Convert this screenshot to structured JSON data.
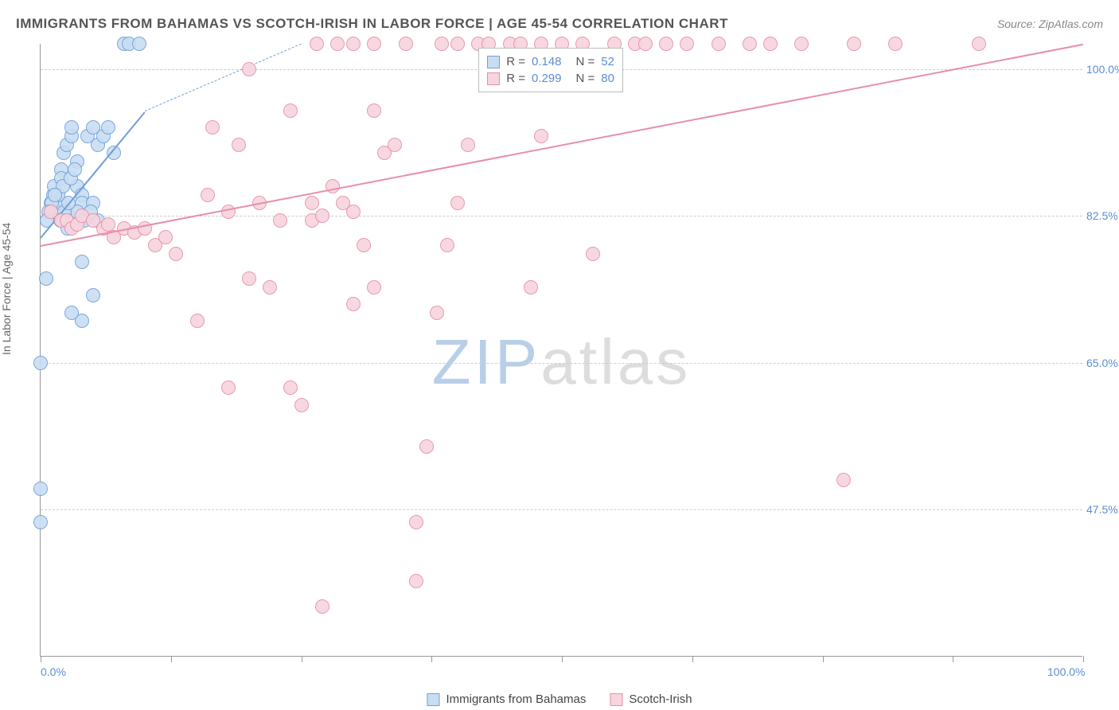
{
  "title": "IMMIGRANTS FROM BAHAMAS VS SCOTCH-IRISH IN LABOR FORCE | AGE 45-54 CORRELATION CHART",
  "source_label": "Source: ZipAtlas.com",
  "y_axis_title": "In Labor Force | Age 45-54",
  "watermark": {
    "pre": "ZIP",
    "post": "atlas",
    "pre_color": "#b9cfe8",
    "post_color": "#dddddd"
  },
  "chart": {
    "type": "scatter",
    "xlim": [
      0,
      100
    ],
    "ylim": [
      30,
      103
    ],
    "y_ticks": [
      {
        "v": 47.5,
        "label": "47.5%"
      },
      {
        "v": 65.0,
        "label": "65.0%"
      },
      {
        "v": 82.5,
        "label": "82.5%"
      },
      {
        "v": 100.0,
        "label": "100.0%"
      }
    ],
    "x_ticks_major": [
      0,
      12.5,
      25,
      37.5,
      50,
      62.5,
      75,
      87.5,
      100
    ],
    "x_tick_labels": [
      {
        "v": 0,
        "label": "0.0%"
      },
      {
        "v": 100,
        "label": "100.0%"
      }
    ],
    "background_color": "#ffffff",
    "grid_color": "#cccccc",
    "marker_radius": 9,
    "marker_fill_opacity": 0.25,
    "series": [
      {
        "name": "Immigrants from Bahamas",
        "color": "#6f9fd8",
        "fill": "#c9ddf2",
        "R": 0.148,
        "N": 52,
        "trend": {
          "x1": 0,
          "y1": 80,
          "x2": 10,
          "y2": 95,
          "solid_until_x": 10,
          "dash_to_x": 25,
          "dash_to_y": 103
        },
        "points": [
          [
            0,
            50
          ],
          [
            0,
            46
          ],
          [
            0,
            65
          ],
          [
            0.5,
            75
          ],
          [
            1,
            84
          ],
          [
            1,
            83
          ],
          [
            1.2,
            85
          ],
          [
            1.3,
            86
          ],
          [
            1.5,
            82.5
          ],
          [
            1.5,
            83
          ],
          [
            1.8,
            84
          ],
          [
            2,
            88
          ],
          [
            2,
            87
          ],
          [
            2.2,
            90
          ],
          [
            2.5,
            91
          ],
          [
            2.5,
            83
          ],
          [
            3,
            92
          ],
          [
            3,
            93
          ],
          [
            3.5,
            89
          ],
          [
            3.5,
            86
          ],
          [
            4,
            85
          ],
          [
            4,
            84
          ],
          [
            4.5,
            92
          ],
          [
            5,
            93
          ],
          [
            5,
            84
          ],
          [
            5.5,
            82
          ],
          [
            5,
            73
          ],
          [
            4,
            70
          ],
          [
            3,
            71
          ],
          [
            4,
            77
          ],
          [
            5.5,
            91
          ],
          [
            6,
            92
          ],
          [
            6.5,
            93
          ],
          [
            7,
            90
          ],
          [
            8,
            103
          ],
          [
            8.5,
            103
          ],
          [
            9.5,
            103
          ],
          [
            3.5,
            83
          ],
          [
            2.3,
            83
          ],
          [
            2.7,
            84
          ],
          [
            1.7,
            85
          ],
          [
            2.1,
            86
          ],
          [
            2.9,
            87
          ],
          [
            3.3,
            88
          ],
          [
            1.9,
            82
          ],
          [
            2.6,
            81
          ],
          [
            4.2,
            82
          ],
          [
            4.8,
            83
          ],
          [
            1.1,
            84
          ],
          [
            1.4,
            85
          ],
          [
            0.8,
            83
          ],
          [
            0.6,
            82
          ]
        ]
      },
      {
        "name": "Scotch-Irish",
        "color": "#e68fa8",
        "fill": "#f7d4de",
        "R": 0.299,
        "N": 80,
        "trend": {
          "x1": 0,
          "y1": 79,
          "x2": 100,
          "y2": 103,
          "solid_until_x": 100
        },
        "points": [
          [
            1,
            83
          ],
          [
            2,
            82
          ],
          [
            2.5,
            82
          ],
          [
            3,
            81
          ],
          [
            3.5,
            81.5
          ],
          [
            4,
            82.5
          ],
          [
            5,
            82
          ],
          [
            6,
            81
          ],
          [
            6.5,
            81.5
          ],
          [
            7,
            80
          ],
          [
            8,
            81
          ],
          [
            9,
            80.5
          ],
          [
            10,
            81
          ],
          [
            11,
            79
          ],
          [
            12,
            80
          ],
          [
            13,
            78
          ],
          [
            15,
            70
          ],
          [
            16,
            85
          ],
          [
            16.5,
            93
          ],
          [
            18,
            83
          ],
          [
            19,
            91
          ],
          [
            18,
            62
          ],
          [
            20,
            100
          ],
          [
            20,
            75
          ],
          [
            21,
            84
          ],
          [
            22,
            74
          ],
          [
            23,
            82
          ],
          [
            24,
            95
          ],
          [
            24,
            62
          ],
          [
            25,
            60
          ],
          [
            26,
            84
          ],
          [
            26,
            82
          ],
          [
            27,
            82.5
          ],
          [
            27,
            36
          ],
          [
            28,
            86
          ],
          [
            29,
            84
          ],
          [
            30,
            83
          ],
          [
            30,
            72
          ],
          [
            30,
            103
          ],
          [
            31,
            79
          ],
          [
            32,
            74
          ],
          [
            32,
            103
          ],
          [
            32,
            95
          ],
          [
            33,
            90
          ],
          [
            34,
            91
          ],
          [
            35,
            103
          ],
          [
            36,
            46
          ],
          [
            36,
            39
          ],
          [
            37,
            55
          ],
          [
            38,
            71
          ],
          [
            39,
            79
          ],
          [
            40,
            84
          ],
          [
            40,
            103
          ],
          [
            41,
            91
          ],
          [
            42,
            103
          ],
          [
            43,
            103
          ],
          [
            45,
            103
          ],
          [
            46,
            103
          ],
          [
            47,
            74
          ],
          [
            48,
            103
          ],
          [
            50,
            103
          ],
          [
            52,
            103
          ],
          [
            53,
            78
          ],
          [
            55,
            103
          ],
          [
            57,
            103
          ],
          [
            58,
            103
          ],
          [
            60,
            103
          ],
          [
            62,
            103
          ],
          [
            65,
            103
          ],
          [
            68,
            103
          ],
          [
            70,
            103
          ],
          [
            73,
            103
          ],
          [
            77,
            51
          ],
          [
            78,
            103
          ],
          [
            82,
            103
          ],
          [
            90,
            103
          ],
          [
            38.5,
            103
          ],
          [
            28.5,
            103
          ],
          [
            26.5,
            103
          ],
          [
            48,
            92
          ]
        ]
      }
    ]
  },
  "legend_top": {
    "r_label": "R =",
    "n_label": "N =",
    "r_color": "#5b8dd6",
    "text_color": "#555555"
  },
  "legend_bottom_labels": [
    "Immigrants from Bahamas",
    "Scotch-Irish"
  ]
}
